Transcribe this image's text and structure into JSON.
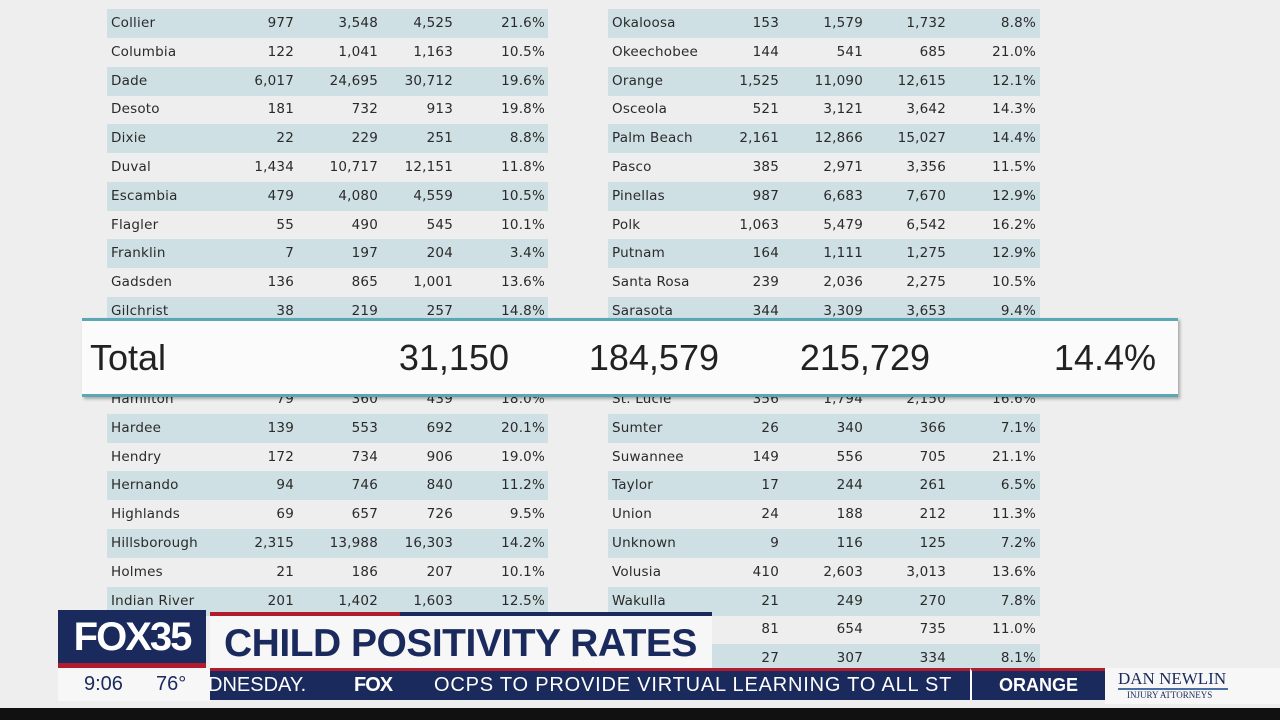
{
  "table_left_top": [
    [
      "Collier",
      "977",
      "3,548",
      "4,525",
      "21.6%"
    ],
    [
      "Columbia",
      "122",
      "1,041",
      "1,163",
      "10.5%"
    ],
    [
      "Dade",
      "6,017",
      "24,695",
      "30,712",
      "19.6%"
    ],
    [
      "Desoto",
      "181",
      "732",
      "913",
      "19.8%"
    ],
    [
      "Dixie",
      "22",
      "229",
      "251",
      "8.8%"
    ],
    [
      "Duval",
      "1,434",
      "10,717",
      "12,151",
      "11.8%"
    ],
    [
      "Escambia",
      "479",
      "4,080",
      "4,559",
      "10.5%"
    ],
    [
      "Flagler",
      "55",
      "490",
      "545",
      "10.1%"
    ],
    [
      "Franklin",
      "7",
      "197",
      "204",
      "3.4%"
    ],
    [
      "Gadsden",
      "136",
      "865",
      "1,001",
      "13.6%"
    ],
    [
      "Gilchrist",
      "38",
      "219",
      "257",
      "14.8%"
    ]
  ],
  "table_right_top": [
    [
      "Okaloosa",
      "153",
      "1,579",
      "1,732",
      "8.8%"
    ],
    [
      "Okeechobee",
      "144",
      "541",
      "685",
      "21.0%"
    ],
    [
      "Orange",
      "1,525",
      "11,090",
      "12,615",
      "12.1%"
    ],
    [
      "Osceola",
      "521",
      "3,121",
      "3,642",
      "14.3%"
    ],
    [
      "Palm Beach",
      "2,161",
      "12,866",
      "15,027",
      "14.4%"
    ],
    [
      "Pasco",
      "385",
      "2,971",
      "3,356",
      "11.5%"
    ],
    [
      "Pinellas",
      "987",
      "6,683",
      "7,670",
      "12.9%"
    ],
    [
      "Polk",
      "1,063",
      "5,479",
      "6,542",
      "16.2%"
    ],
    [
      "Putnam",
      "164",
      "1,111",
      "1,275",
      "12.9%"
    ],
    [
      "Santa Rosa",
      "239",
      "2,036",
      "2,275",
      "10.5%"
    ],
    [
      "Sarasota",
      "344",
      "3,309",
      "3,653",
      "9.4%"
    ]
  ],
  "table_left_bottom": [
    [
      "Hamilton",
      "79",
      "360",
      "439",
      "18.0%"
    ],
    [
      "Hardee",
      "139",
      "553",
      "692",
      "20.1%"
    ],
    [
      "Hendry",
      "172",
      "734",
      "906",
      "19.0%"
    ],
    [
      "Hernando",
      "94",
      "746",
      "840",
      "11.2%"
    ],
    [
      "Highlands",
      "69",
      "657",
      "726",
      "9.5%"
    ],
    [
      "Hillsborough",
      "2,315",
      "13,988",
      "16,303",
      "14.2%"
    ],
    [
      "Holmes",
      "21",
      "186",
      "207",
      "10.1%"
    ],
    [
      "Indian River",
      "201",
      "1,402",
      "1,603",
      "12.5%"
    ]
  ],
  "table_right_bottom": [
    [
      "St. Lucie",
      "356",
      "1,794",
      "2,150",
      "16.6%"
    ],
    [
      "Sumter",
      "26",
      "340",
      "366",
      "7.1%"
    ],
    [
      "Suwannee",
      "149",
      "556",
      "705",
      "21.1%"
    ],
    [
      "Taylor",
      "17",
      "244",
      "261",
      "6.5%"
    ],
    [
      "Union",
      "24",
      "188",
      "212",
      "11.3%"
    ],
    [
      "Unknown",
      "9",
      "116",
      "125",
      "7.2%"
    ],
    [
      "Volusia",
      "410",
      "2,603",
      "3,013",
      "13.6%"
    ],
    [
      "Wakulla",
      "21",
      "249",
      "270",
      "7.8%"
    ],
    [
      "",
      "81",
      "654",
      "735",
      "11.0%"
    ],
    [
      "",
      "27",
      "307",
      "334",
      "8.1%"
    ]
  ],
  "total": {
    "label": "Total",
    "positive": "31,150",
    "negative": "184,579",
    "tested": "215,729",
    "rate": "14.4%"
  },
  "banner": {
    "logo": "FOX35",
    "title": "CHILD POSITIVITY RATES",
    "time": "9:06",
    "temp": "76°",
    "ticker_prev": "DNESDAY.",
    "ticker_logo": "FOX",
    "ticker_text": "OCPS TO PROVIDE VIRTUAL LEARNING TO ALL ST",
    "region": "ORANGE",
    "sponsor_name": "DAN NEWLIN",
    "sponsor_sub": "INJURY ATTORNEYS"
  },
  "colors": {
    "navy": "#1b2a5c",
    "red": "#b01c2e",
    "row_shade": "#cfe0e4",
    "band_line": "#5aa7b5"
  }
}
